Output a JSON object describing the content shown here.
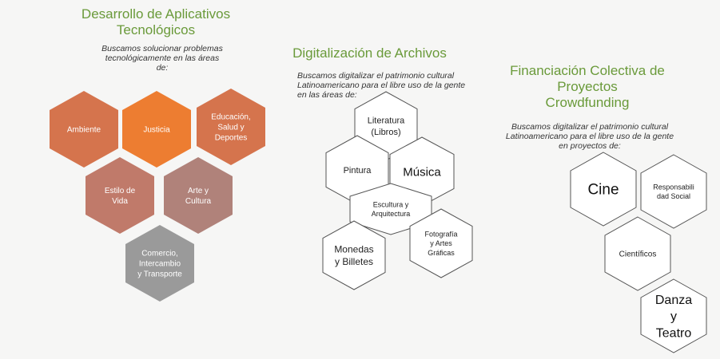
{
  "section1": {
    "title": "Desarrollo de Aplicativos\nTecnológicos",
    "description": "Buscamos solucionar problemas\ntecnológicamente en las áreas\nde:",
    "hexagons": [
      {
        "id": "ambiente",
        "lines": [
          "Ambiente"
        ],
        "fill": "#d5744d"
      },
      {
        "id": "justicia",
        "lines": [
          "Justicia"
        ],
        "fill": "#ed7d31"
      },
      {
        "id": "educacion",
        "lines": [
          "Educación,",
          "Salud y",
          "Deportes"
        ],
        "fill": "#d5744d"
      },
      {
        "id": "estilo",
        "lines": [
          "Estilo de",
          "Vida"
        ],
        "fill": "#c07a6a"
      },
      {
        "id": "arte",
        "lines": [
          "Arte y",
          "Cultura"
        ],
        "fill": "#b0827a"
      },
      {
        "id": "comercio",
        "lines": [
          "Comercio,",
          "Intercambio",
          "y Transporte"
        ],
        "fill": "#9a9a9a"
      }
    ]
  },
  "section2": {
    "title": "Digitalización de Archivos",
    "description": "Buscamos digitalizar el patrimonio cultural\nLatinoamericano para el libre uso de la gente\nen las áreas de:",
    "hexagons": [
      {
        "id": "literatura",
        "lines": [
          "Literatura",
          "(Libros)"
        ]
      },
      {
        "id": "pintura",
        "lines": [
          "Pintura"
        ]
      },
      {
        "id": "musica",
        "lines": [
          "Música"
        ]
      },
      {
        "id": "escultura",
        "lines": [
          "Escultura y",
          "Arquitectura"
        ]
      },
      {
        "id": "monedas",
        "lines": [
          "Monedas",
          "y Billetes"
        ]
      },
      {
        "id": "fotografia",
        "lines": [
          "Fotografía",
          "y Artes",
          "Gráficas"
        ]
      }
    ]
  },
  "section3": {
    "title": "Financiación Colectiva de\nProyectos\nCrowdfunding",
    "description": "Buscamos digitalizar el patrimonio cultural\nLatinoamericano para el libre uso de la gente\nen proyectos de:",
    "hexagons": [
      {
        "id": "cine",
        "lines": [
          "Cine"
        ]
      },
      {
        "id": "responsabilidad",
        "lines": [
          "Responsabili",
          "dad Social"
        ]
      },
      {
        "id": "cientificos",
        "lines": [
          "Científicos"
        ]
      },
      {
        "id": "danza",
        "lines": [
          "Danza",
          "y",
          "Teatro"
        ]
      }
    ]
  },
  "colors": {
    "title": "#6a9a3a",
    "outline": "#555555",
    "white_fill": "#ffffff"
  }
}
